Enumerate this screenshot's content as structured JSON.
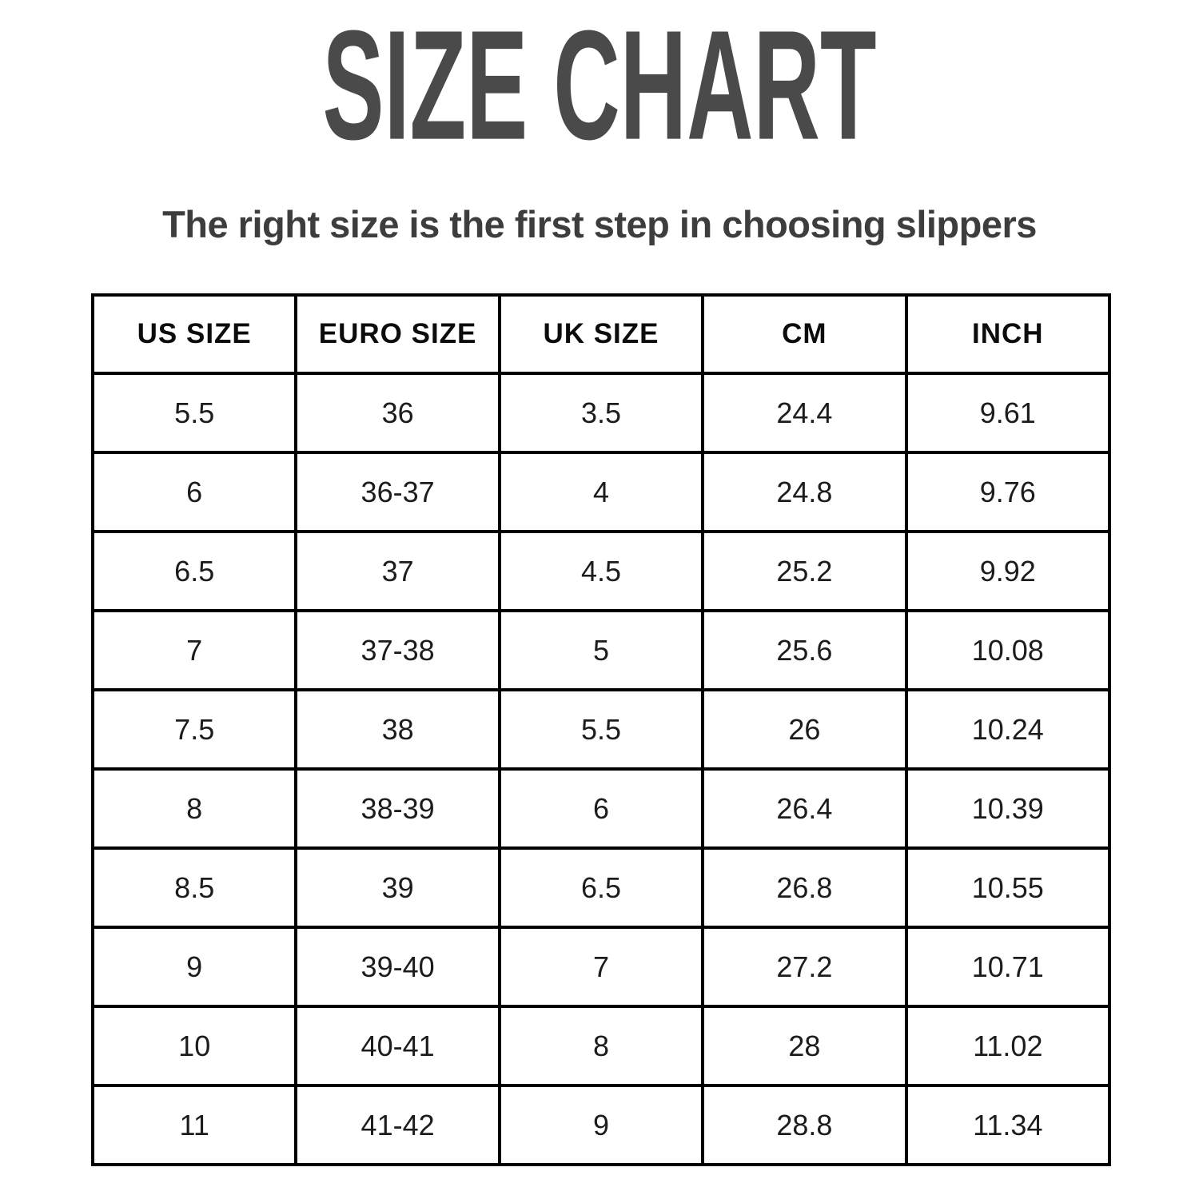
{
  "page": {
    "title": "SIZE CHART",
    "subtitle": "The right size is the first step in choosing slippers"
  },
  "colors": {
    "background": "#ffffff",
    "title_text": "#4a4a4a",
    "subtitle_text": "#3d3d3d",
    "table_border": "#000000",
    "header_text": "#0c0c0c",
    "cell_text": "#1c1c1c"
  },
  "chart_data": {
    "type": "table",
    "title": "SIZE CHART",
    "subtitle": "The right size is the first step in choosing slippers",
    "columns": [
      "US SIZE",
      "EURO SIZE",
      "UK SIZE",
      "CM",
      "INCH"
    ],
    "rows": [
      [
        "5.5",
        "36",
        "3.5",
        "24.4",
        "9.61"
      ],
      [
        "6",
        "36-37",
        "4",
        "24.8",
        "9.76"
      ],
      [
        "6.5",
        "37",
        "4.5",
        "25.2",
        "9.92"
      ],
      [
        "7",
        "37-38",
        "5",
        "25.6",
        "10.08"
      ],
      [
        "7.5",
        "38",
        "5.5",
        "26",
        "10.24"
      ],
      [
        "8",
        "38-39",
        "6",
        "26.4",
        "10.39"
      ],
      [
        "8.5",
        "39",
        "6.5",
        "26.8",
        "10.55"
      ],
      [
        "9",
        "39-40",
        "7",
        "27.2",
        "10.71"
      ],
      [
        "10",
        "40-41",
        "8",
        "28",
        "11.02"
      ],
      [
        "11",
        "41-42",
        "9",
        "28.8",
        "11.34"
      ]
    ],
    "layout": {
      "grid": "on",
      "column_count": 5,
      "row_count": 10,
      "header_row": true
    }
  }
}
